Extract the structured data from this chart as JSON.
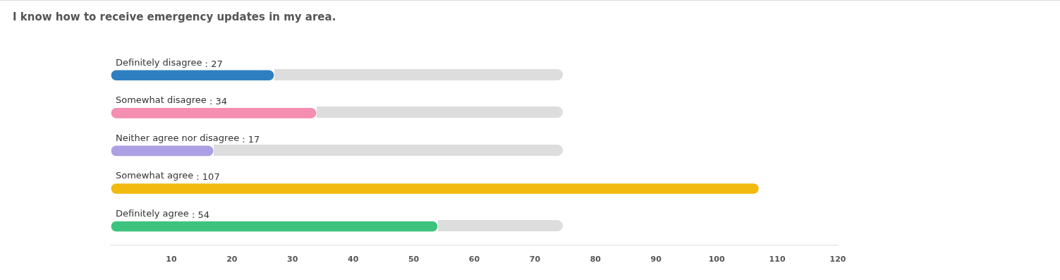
{
  "chart_data": {
    "type": "bar",
    "orientation": "horizontal",
    "title": "I know how to receive emergency updates in my area.",
    "categories": [
      "Definitely disagree",
      "Somewhat disagree",
      "Neither agree nor disagree",
      "Somewhat agree",
      "Definitely agree"
    ],
    "values": [
      27,
      34,
      17,
      107,
      54
    ],
    "colors": [
      "#2e7fc2",
      "#f48fb1",
      "#ad9fe3",
      "#f2b90f",
      "#3ec37f"
    ],
    "xlim": [
      0,
      120
    ],
    "xticks": [
      10,
      20,
      30,
      40,
      50,
      60,
      70,
      80,
      90,
      100,
      110,
      120
    ],
    "value_labels": [
      ": 27",
      ": 34",
      ": 17",
      ": 107",
      ": 54"
    ],
    "grid": false,
    "legend": false
  }
}
